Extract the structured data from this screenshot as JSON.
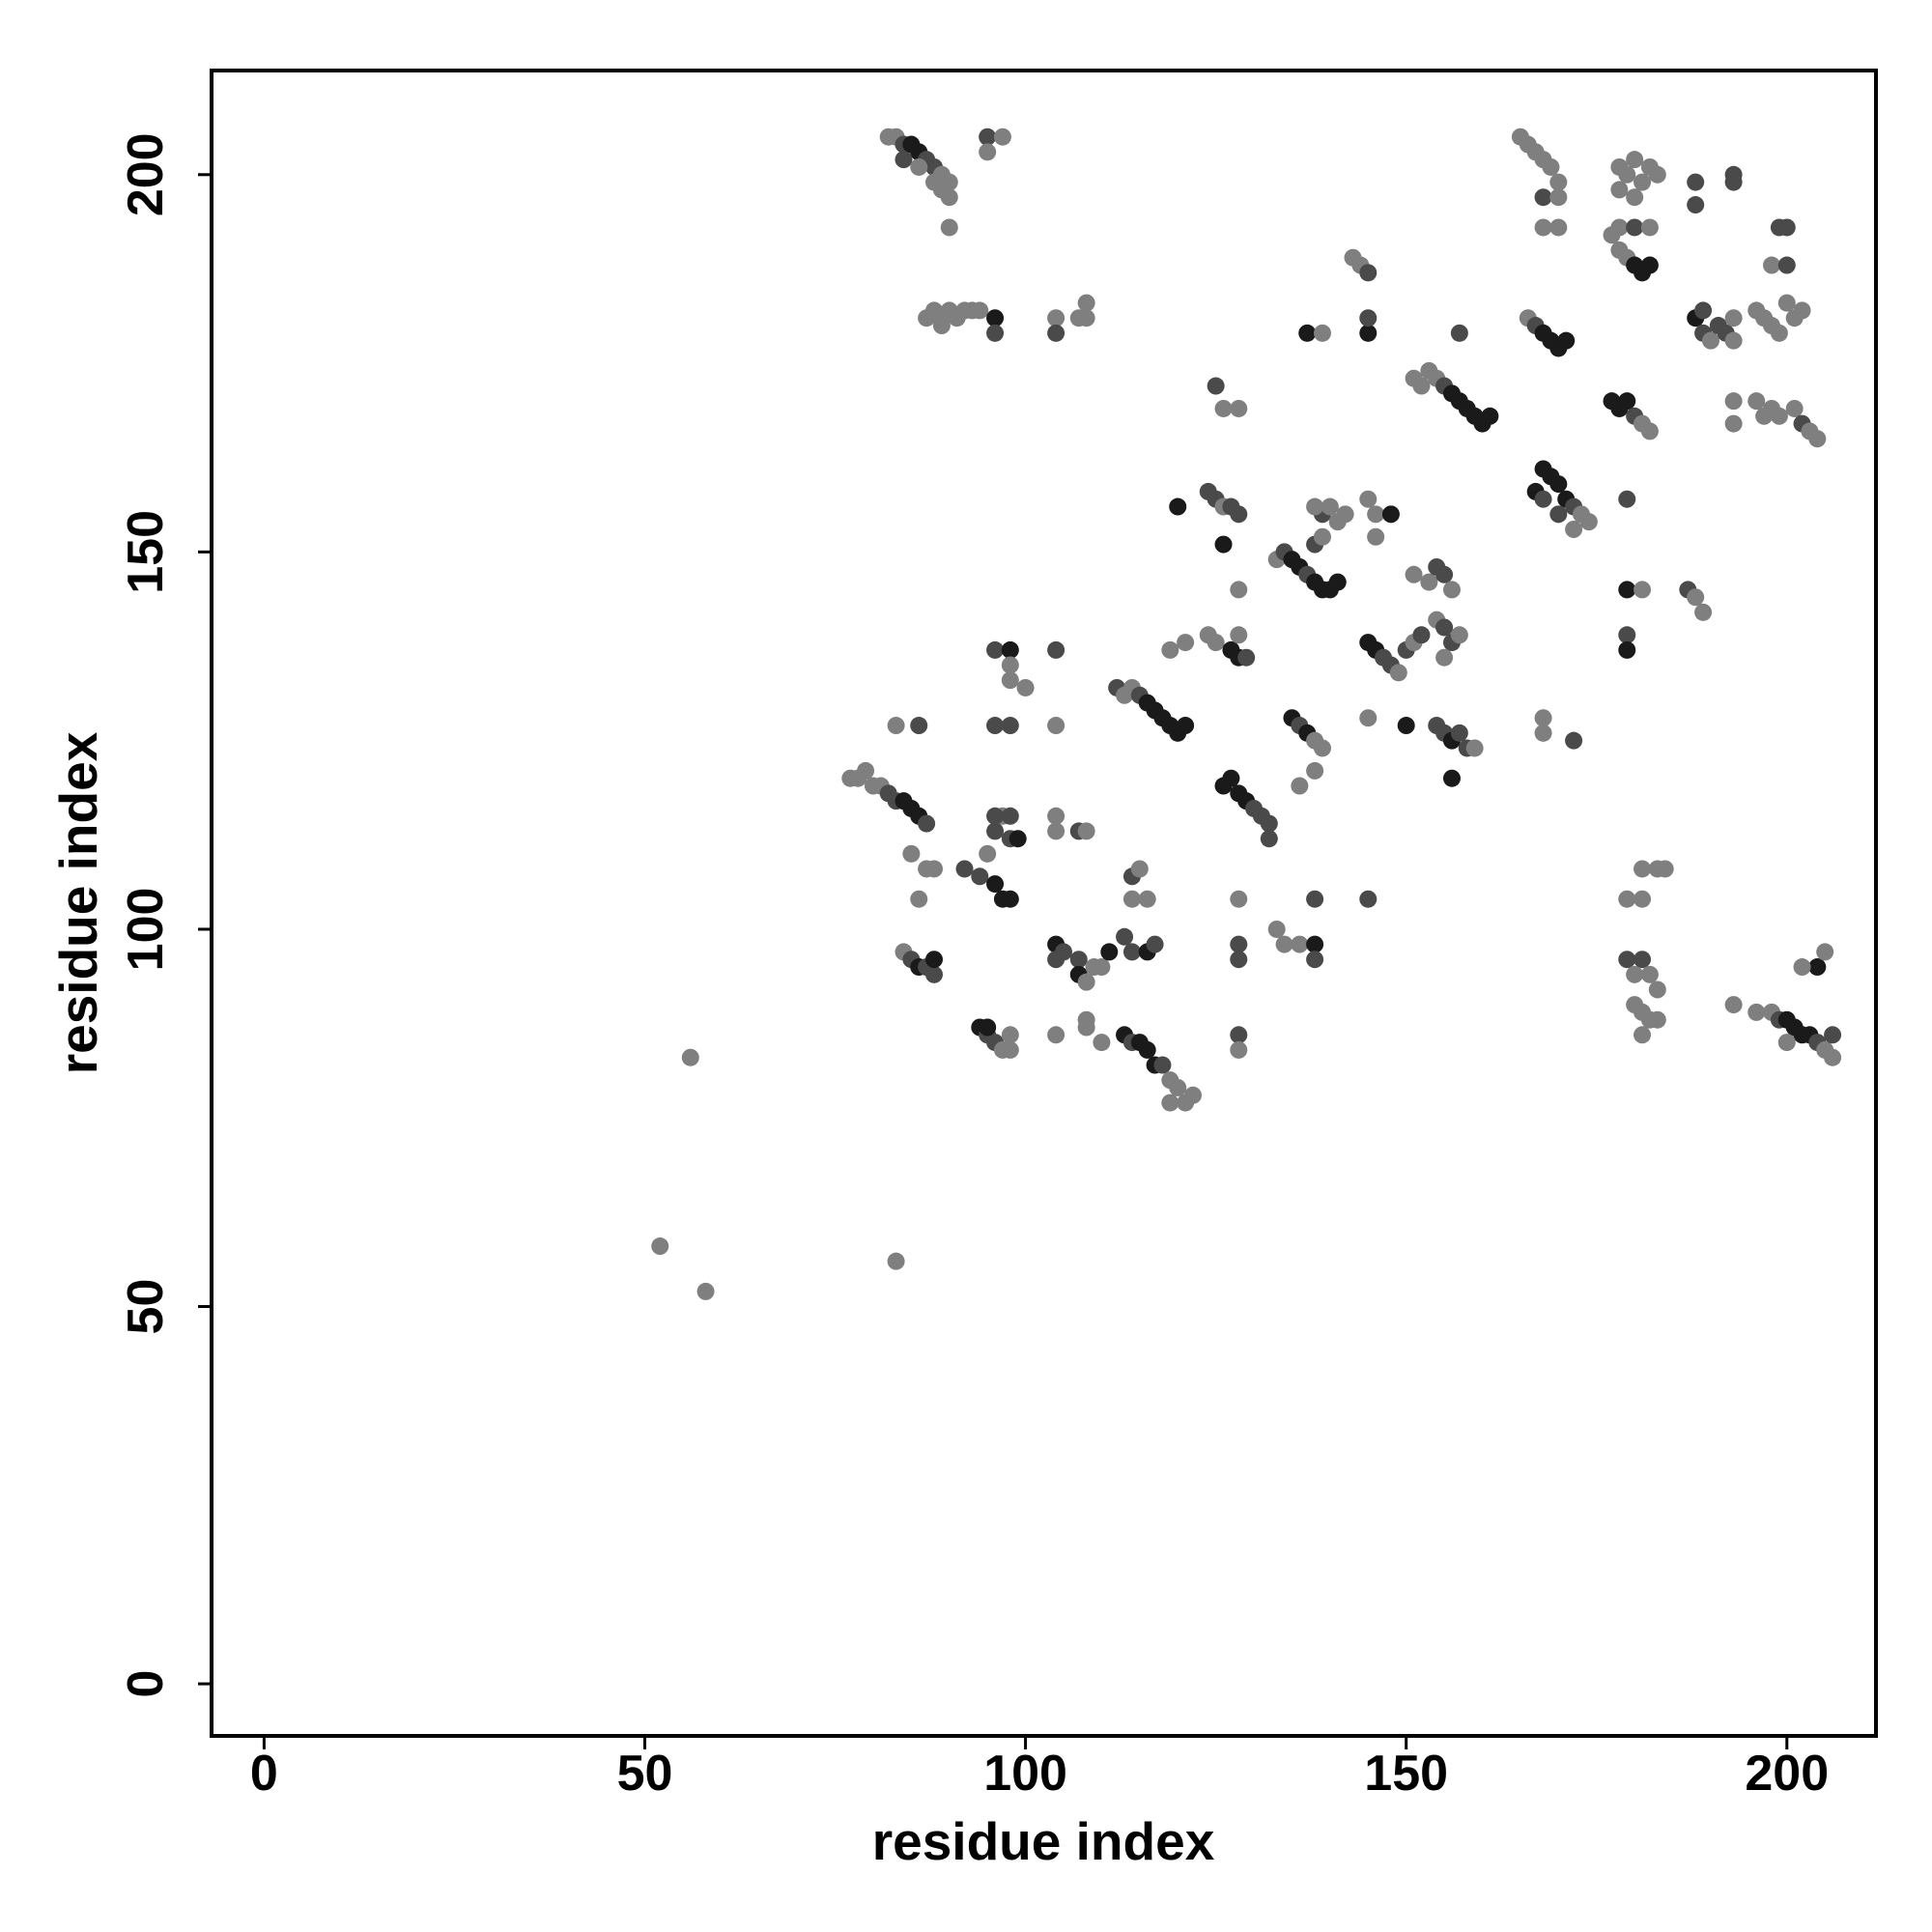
{
  "chart_data": {
    "type": "scatter",
    "xlabel": "residue index",
    "ylabel": "residue index",
    "xlim": [
      -6.9,
      211.7
    ],
    "ylim": [
      -6.9,
      213.8
    ],
    "xticks": [
      0,
      50,
      100,
      150,
      200
    ],
    "yticks": [
      0,
      50,
      100,
      150,
      200
    ],
    "x": [
      82,
      83,
      84,
      85,
      86,
      87,
      88,
      89,
      90,
      90,
      84,
      86,
      88,
      89,
      90,
      95,
      95,
      97,
      87,
      88,
      89,
      90,
      91,
      92,
      93,
      94,
      96,
      96,
      89,
      104,
      104,
      107,
      108,
      108,
      52,
      56,
      58,
      83,
      77,
      78,
      79,
      80,
      81,
      82,
      83,
      84,
      85,
      86,
      87,
      85,
      86,
      87,
      88,
      83,
      86,
      84,
      85,
      86,
      87,
      88,
      88,
      92,
      94,
      95,
      96,
      97,
      98,
      96,
      97,
      98,
      98,
      99,
      96,
      94,
      95,
      96,
      97,
      98,
      98,
      95,
      96,
      98,
      98,
      100,
      96,
      98,
      98,
      104,
      105,
      104,
      107,
      107,
      108,
      109,
      110,
      111,
      104,
      108,
      108,
      110,
      104,
      104,
      107,
      108,
      104,
      104,
      113,
      114,
      115,
      116,
      117,
      118,
      119,
      120,
      121,
      122,
      119,
      113,
      114,
      116,
      117,
      114,
      116,
      114,
      115,
      112,
      113,
      114,
      115,
      116,
      117,
      118,
      119,
      120,
      121,
      119,
      121,
      120,
      125,
      126,
      128,
      124,
      125,
      126,
      127,
      128,
      126,
      128,
      124,
      125,
      127,
      128,
      129,
      128,
      126,
      127,
      128,
      129,
      130,
      131,
      132,
      132,
      128,
      128,
      128,
      128,
      128,
      133,
      134,
      136,
      138,
      138,
      138,
      133,
      134,
      135,
      136,
      137,
      138,
      139,
      140,
      141,
      138,
      139,
      139,
      138,
      140,
      141,
      142,
      137,
      139,
      143,
      144,
      145,
      145,
      145,
      135,
      136,
      137,
      138,
      139,
      136,
      138,
      145,
      146,
      147,
      148,
      149,
      150,
      151,
      152,
      145,
      145,
      145,
      146,
      148,
      146,
      150,
      151,
      153,
      154,
      155,
      156,
      154,
      155,
      156,
      157,
      155,
      154,
      155,
      156,
      157,
      158,
      159,
      156,
      151,
      152,
      153,
      154,
      155,
      156,
      157,
      158,
      159,
      160,
      161,
      157,
      166,
      167,
      168,
      169,
      170,
      171,
      168,
      169,
      170,
      171,
      172,
      173,
      174,
      167,
      168,
      170,
      172,
      165,
      166,
      167,
      168,
      169,
      170,
      168,
      170,
      168,
      170,
      168,
      168,
      172,
      177,
      178,
      179,
      180,
      181,
      182,
      178,
      180,
      182,
      178,
      179,
      180,
      181,
      182,
      183,
      178,
      180,
      177,
      178,
      179,
      180,
      181,
      182,
      179,
      179,
      181,
      179,
      179,
      179,
      181,
      181,
      183,
      184,
      179,
      181,
      180,
      182,
      183,
      180,
      181,
      182,
      183,
      181,
      188,
      189,
      190,
      191,
      192,
      193,
      193,
      189,
      188,
      188,
      193,
      193,
      187,
      188,
      189,
      193,
      193,
      193,
      196,
      197,
      198,
      199,
      200,
      201,
      202,
      198,
      200,
      199,
      200,
      196,
      198,
      199,
      201,
      202,
      203,
      204,
      197,
      196,
      198,
      199,
      200,
      201,
      202,
      203,
      204,
      205,
      206,
      204,
      202,
      205,
      200,
      206
    ],
    "values": [
      205,
      205,
      204,
      204,
      203,
      202,
      201,
      200,
      199,
      197,
      202,
      201,
      199,
      198,
      193,
      205,
      203,
      205,
      181,
      182,
      181,
      182,
      181,
      182,
      182,
      182,
      181,
      179,
      180,
      181,
      179,
      181,
      183,
      181,
      58,
      83,
      52,
      56,
      120,
      120,
      121,
      119,
      119,
      118,
      117,
      117,
      116,
      115,
      114,
      110,
      104,
      108,
      108,
      127,
      127,
      97,
      96,
      95,
      95,
      94,
      96,
      108,
      107,
      110,
      106,
      104,
      104,
      113,
      115,
      112,
      115,
      112,
      115,
      87,
      86,
      85,
      84,
      86,
      84,
      87,
      137,
      137,
      133,
      132,
      127,
      127,
      135,
      98,
      97,
      96,
      96,
      94,
      93,
      95,
      95,
      97,
      86,
      88,
      87,
      85,
      113,
      115,
      113,
      113,
      127,
      137,
      86,
      85,
      85,
      84,
      82,
      82,
      80,
      79,
      77,
      78,
      77,
      99,
      97,
      97,
      98,
      104,
      104,
      107,
      108,
      132,
      131,
      132,
      131,
      130,
      129,
      128,
      127,
      126,
      127,
      137,
      138,
      156,
      172,
      169,
      169,
      158,
      157,
      156,
      156,
      155,
      151,
      145,
      139,
      138,
      137,
      136,
      136,
      139,
      119,
      120,
      118,
      117,
      116,
      115,
      114,
      112,
      104,
      98,
      96,
      86,
      84,
      100,
      98,
      98,
      98,
      96,
      104,
      149,
      150,
      149,
      148,
      147,
      146,
      145,
      145,
      146,
      151,
      152,
      155,
      156,
      156,
      154,
      155,
      179,
      179,
      189,
      188,
      187,
      179,
      181,
      128,
      127,
      126,
      125,
      124,
      119,
      121,
      138,
      137,
      136,
      135,
      134,
      137,
      138,
      139,
      128,
      104,
      157,
      155,
      155,
      152,
      127,
      147,
      146,
      148,
      147,
      145,
      141,
      140,
      138,
      139,
      136,
      127,
      126,
      125,
      126,
      124,
      124,
      120,
      173,
      172,
      174,
      173,
      172,
      171,
      170,
      169,
      168,
      167,
      168,
      179,
      181,
      180,
      179,
      178,
      177,
      178,
      161,
      160,
      159,
      157,
      156,
      155,
      154,
      158,
      157,
      155,
      153,
      205,
      204,
      203,
      202,
      201,
      199,
      197,
      197,
      193,
      193,
      128,
      126,
      125,
      192,
      190,
      189,
      188,
      187,
      188,
      193,
      193,
      193,
      201,
      200,
      202,
      199,
      201,
      200,
      198,
      197,
      170,
      169,
      170,
      168,
      167,
      166,
      157,
      145,
      145,
      139,
      137,
      104,
      104,
      108,
      108,
      108,
      96,
      96,
      94,
      94,
      92,
      90,
      89,
      88,
      88,
      86,
      181,
      179,
      178,
      180,
      179,
      181,
      178,
      182,
      199,
      196,
      200,
      199,
      145,
      144,
      142,
      170,
      167,
      90,
      182,
      181,
      180,
      179,
      183,
      181,
      182,
      188,
      188,
      193,
      193,
      170,
      169,
      168,
      169,
      167,
      166,
      165,
      168,
      89,
      89,
      88,
      88,
      87,
      86,
      86,
      85,
      84,
      83,
      95,
      95,
      97,
      85,
      86
    ],
    "colors": [
      "#7f7f7f",
      "#7f7f7f",
      "#4a4a4a",
      "#1a1a1a",
      "#1a1a1a",
      "#4a4a4a",
      "#4a4a4a",
      "#7f7f7f",
      "#7f7f7f",
      "#7f7f7f",
      "#4a4a4a",
      "#7f7f7f",
      "#7f7f7f",
      "#7f7f7f",
      "#7f7f7f",
      "#4a4a4a",
      "#7f7f7f",
      "#7f7f7f",
      "#7f7f7f",
      "#7f7f7f",
      "#7f7f7f",
      "#7f7f7f",
      "#7f7f7f",
      "#7f7f7f",
      "#7f7f7f",
      "#7f7f7f",
      "#1a1a1a",
      "#4a4a4a",
      "#7f7f7f",
      "#7f7f7f",
      "#4a4a4a",
      "#7f7f7f",
      "#7f7f7f",
      "#7f7f7f",
      "#7f7f7f",
      "#7f7f7f",
      "#7f7f7f",
      "#7f7f7f",
      "#7f7f7f",
      "#7f7f7f",
      "#7f7f7f",
      "#7f7f7f",
      "#7f7f7f",
      "#4a4a4a",
      "#4a4a4a",
      "#1a1a1a",
      "#1a1a1a",
      "#1a1a1a",
      "#4a4a4a",
      "#7f7f7f",
      "#7f7f7f",
      "#7f7f7f",
      "#7f7f7f",
      "#7f7f7f",
      "#4a4a4a",
      "#7f7f7f",
      "#4a4a4a",
      "#1a1a1a",
      "#4a4a4a",
      "#4a4a4a",
      "#1a1a1a",
      "#4a4a4a",
      "#4a4a4a",
      "#7f7f7f",
      "#1a1a1a",
      "#1a1a1a",
      "#1a1a1a",
      "#4a4a4a",
      "#7f7f7f",
      "#4a4a4a",
      "#4a4a4a",
      "#1a1a1a",
      "#4a4a4a",
      "#1a1a1a",
      "#4a4a4a",
      "#4a4a4a",
      "#7f7f7f",
      "#7f7f7f",
      "#7f7f7f",
      "#1a1a1a",
      "#4a4a4a",
      "#1a1a1a",
      "#7f7f7f",
      "#7f7f7f",
      "#4a4a4a",
      "#4a4a4a",
      "#7f7f7f",
      "#1a1a1a",
      "#4a4a4a",
      "#4a4a4a",
      "#4a4a4a",
      "#1a1a1a",
      "#7f7f7f",
      "#7f7f7f",
      "#7f7f7f",
      "#1a1a1a",
      "#7f7f7f",
      "#7f7f7f",
      "#7f7f7f",
      "#7f7f7f",
      "#7f7f7f",
      "#7f7f7f",
      "#4a4a4a",
      "#7f7f7f",
      "#7f7f7f",
      "#4a4a4a",
      "#1a1a1a",
      "#4a4a4a",
      "#1a1a1a",
      "#1a1a1a",
      "#1a1a1a",
      "#4a4a4a",
      "#7f7f7f",
      "#7f7f7f",
      "#7f7f7f",
      "#7f7f7f",
      "#7f7f7f",
      "#4a4a4a",
      "#4a4a4a",
      "#1a1a1a",
      "#4a4a4a",
      "#7f7f7f",
      "#7f7f7f",
      "#4a4a4a",
      "#7f7f7f",
      "#4a4a4a",
      "#7f7f7f",
      "#7f7f7f",
      "#4a4a4a",
      "#1a1a1a",
      "#1a1a1a",
      "#1a1a1a",
      "#1a1a1a",
      "#1a1a1a",
      "#1a1a1a",
      "#7f7f7f",
      "#7f7f7f",
      "#1a1a1a",
      "#4a4a4a",
      "#7f7f7f",
      "#7f7f7f",
      "#4a4a4a",
      "#4a4a4a",
      "#7f7f7f",
      "#4a4a4a",
      "#4a4a4a",
      "#1a1a1a",
      "#7f7f7f",
      "#7f7f7f",
      "#7f7f7f",
      "#1a1a1a",
      "#1a1a1a",
      "#4a4a4a",
      "#7f7f7f",
      "#1a1a1a",
      "#1a1a1a",
      "#1a1a1a",
      "#1a1a1a",
      "#4a4a4a",
      "#4a4a4a",
      "#4a4a4a",
      "#4a4a4a",
      "#7f7f7f",
      "#4a4a4a",
      "#4a4a4a",
      "#4a4a4a",
      "#7f7f7f",
      "#7f7f7f",
      "#7f7f7f",
      "#7f7f7f",
      "#1a1a1a",
      "#4a4a4a",
      "#4a4a4a",
      "#7f7f7f",
      "#4a4a4a",
      "#1a1a1a",
      "#1a1a1a",
      "#4a4a4a",
      "#1a1a1a",
      "#1a1a1a",
      "#1a1a1a",
      "#1a1a1a",
      "#4a4a4a",
      "#7f7f7f",
      "#4a4a4a",
      "#7f7f7f",
      "#7f7f7f",
      "#7f7f7f",
      "#7f7f7f",
      "#1a1a1a",
      "#7f7f7f",
      "#7f7f7f",
      "#7f7f7f",
      "#4a4a4a",
      "#1a1a1a",
      "#4a4a4a",
      "#1a1a1a",
      "#4a4a4a",
      "#1a1a1a",
      "#7f7f7f",
      "#7f7f7f",
      "#7f7f7f",
      "#7f7f7f",
      "#1a1a1a",
      "#1a1a1a",
      "#4a4a4a",
      "#4a4a4a",
      "#7f7f7f",
      "#4a4a4a",
      "#7f7f7f",
      "#4a4a4a",
      "#7f7f7f",
      "#4a4a4a",
      "#7f7f7f",
      "#7f7f7f",
      "#1a1a1a",
      "#7f7f7f",
      "#1a1a1a",
      "#7f7f7f",
      "#7f7f7f",
      "#4a4a4a",
      "#4a4a4a",
      "#7f7f7f",
      "#7f7f7f",
      "#4a4a4a",
      "#4a4a4a",
      "#7f7f7f",
      "#7f7f7f",
      "#4a4a4a",
      "#4a4a4a",
      "#1a1a1a",
      "#4a4a4a",
      "#4a4a4a",
      "#7f7f7f",
      "#1a1a1a",
      "#7f7f7f",
      "#7f7f7f",
      "#7f7f7f",
      "#7f7f7f",
      "#4a4a4a",
      "#1a1a1a",
      "#1a1a1a",
      "#1a1a1a",
      "#1a1a1a",
      "#1a1a1a",
      "#1a1a1a",
      "#4a4a4a",
      "#7f7f7f",
      "#4a4a4a",
      "#1a1a1a",
      "#1a1a1a",
      "#1a1a1a",
      "#1a1a1a",
      "#1a1a1a",
      "#1a1a1a",
      "#1a1a1a",
      "#1a1a1a",
      "#4a4a4a",
      "#7f7f7f",
      "#7f7f7f",
      "#1a1a1a",
      "#4a4a4a",
      "#4a4a4a",
      "#7f7f7f",
      "#7f7f7f",
      "#7f7f7f",
      "#7f7f7f",
      "#7f7f7f",
      "#7f7f7f",
      "#7f7f7f",
      "#4a4a4a",
      "#7f7f7f",
      "#7f7f7f",
      "#7f7f7f",
      "#7f7f7f",
      "#7f7f7f",
      "#4a4a4a",
      "#7f7f7f",
      "#7f7f7f",
      "#7f7f7f",
      "#1a1a1a",
      "#1a1a1a",
      "#1a1a1a",
      "#7f7f7f",
      "#4a4a4a",
      "#7f7f7f",
      "#7f7f7f",
      "#7f7f7f",
      "#7f7f7f",
      "#7f7f7f",
      "#7f7f7f",
      "#7f7f7f",
      "#7f7f7f",
      "#7f7f7f",
      "#1a1a1a",
      "#1a1a1a",
      "#1a1a1a",
      "#4a4a4a",
      "#7f7f7f",
      "#7f7f7f",
      "#4a4a4a",
      "#1a1a1a",
      "#7f7f7f",
      "#4a4a4a",
      "#1a1a1a",
      "#7f7f7f",
      "#7f7f7f",
      "#7f7f7f",
      "#7f7f7f",
      "#7f7f7f",
      "#4a4a4a",
      "#4a4a4a",
      "#7f7f7f",
      "#7f7f7f",
      "#7f7f7f",
      "#7f7f7f",
      "#7f7f7f",
      "#7f7f7f",
      "#7f7f7f",
      "#7f7f7f",
      "#1a1a1a",
      "#4a4a4a",
      "#7f7f7f",
      "#4a4a4a",
      "#4a4a4a",
      "#7f7f7f",
      "#7f7f7f",
      "#4a4a4a",
      "#4a4a4a",
      "#4a4a4a",
      "#4a4a4a",
      "#4a4a4a",
      "#4a4a4a",
      "#7f7f7f",
      "#7f7f7f",
      "#7f7f7f",
      "#7f7f7f",
      "#7f7f7f",
      "#7f7f7f",
      "#7f7f7f",
      "#7f7f7f",
      "#7f7f7f",
      "#7f7f7f",
      "#7f7f7f",
      "#7f7f7f",
      "#7f7f7f",
      "#4a4a4a",
      "#4a4a4a",
      "#4a4a4a",
      "#7f7f7f",
      "#7f7f7f",
      "#7f7f7f",
      "#7f7f7f",
      "#4a4a4a",
      "#7f7f7f",
      "#7f7f7f",
      "#7f7f7f",
      "#7f7f7f",
      "#7f7f7f",
      "#4a4a4a",
      "#1a1a1a",
      "#1a1a1a",
      "#1a1a1a",
      "#1a1a1a",
      "#4a4a4a",
      "#7f7f7f",
      "#7f7f7f",
      "#1a1a1a",
      "#7f7f7f",
      "#7f7f7f",
      "#7f7f7f",
      "#4a4a4a"
    ]
  }
}
